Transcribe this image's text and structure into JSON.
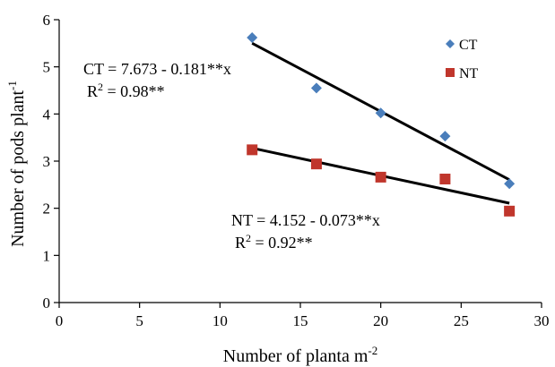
{
  "chart_data": {
    "type": "scatter",
    "xlabel": "Number of planta m",
    "xlabel_sup": "-2",
    "ylabel": "Number of  pods plant",
    "ylabel_sup": "-1",
    "xlim": [
      0,
      30
    ],
    "ylim": [
      0,
      6
    ],
    "xticks": [
      "0",
      "5",
      "10",
      "15",
      "20",
      "25",
      "30"
    ],
    "yticks": [
      "0",
      "1",
      "2",
      "3",
      "4",
      "5",
      "6"
    ],
    "grid": false,
    "legend_position": "top-right",
    "series": [
      {
        "name": "CT",
        "marker": "diamond",
        "color": "#4a7ebb",
        "x": [
          12,
          16,
          20,
          24,
          28
        ],
        "y": [
          5.62,
          4.55,
          4.02,
          3.53,
          2.52
        ],
        "trend_intercept": 7.673,
        "trend_slope": -0.181,
        "equation": "CT = 7.673 - 0.181**x",
        "r2_prefix": "R",
        "r2_sup": "2",
        "r2_suffix": " = 0.98**"
      },
      {
        "name": "NT",
        "marker": "square",
        "color": "#c0362c",
        "x": [
          12,
          16,
          20,
          24,
          28
        ],
        "y": [
          3.24,
          2.94,
          2.66,
          2.62,
          1.94
        ],
        "trend_intercept": 4.152,
        "trend_slope": -0.073,
        "equation": "NT = 4.152 - 0.073**x",
        "r2_prefix": "R",
        "r2_sup": "2",
        "r2_suffix": " = 0.92**"
      }
    ]
  }
}
